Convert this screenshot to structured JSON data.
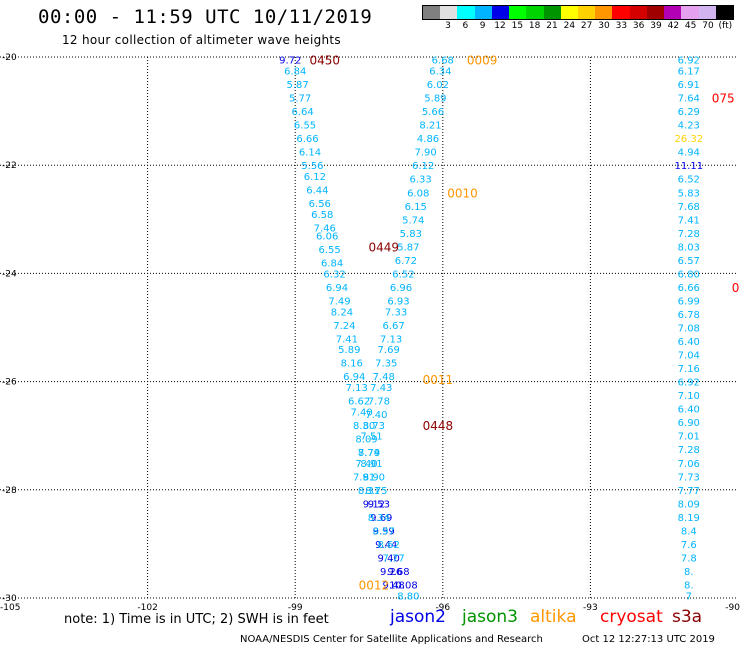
{
  "header": {
    "title": "00:00 - 11:59 UTC 10/11/2019",
    "subtitle": "12 hour collection of altimeter wave heights"
  },
  "colorbar": {
    "unit": "(ft)",
    "segments": [
      {
        "label": "",
        "color": "#808080"
      },
      {
        "label": "3",
        "color": "#e0e0e0"
      },
      {
        "label": "6",
        "color": "#00ffff"
      },
      {
        "label": "9",
        "color": "#00b4ff"
      },
      {
        "label": "12",
        "color": "#0000e8"
      },
      {
        "label": "15",
        "color": "#00ff00"
      },
      {
        "label": "18",
        "color": "#00d400"
      },
      {
        "label": "21",
        "color": "#009400"
      },
      {
        "label": "24",
        "color": "#ffff00"
      },
      {
        "label": "27",
        "color": "#ffd200"
      },
      {
        "label": "30",
        "color": "#ff9600"
      },
      {
        "label": "33",
        "color": "#ff0000"
      },
      {
        "label": "36",
        "color": "#d40000"
      },
      {
        "label": "39",
        "color": "#a00000"
      },
      {
        "label": "42",
        "color": "#b400b4"
      },
      {
        "label": "45",
        "color": "#e6a0f0"
      },
      {
        "label": "70",
        "color": "#d2b4f0"
      },
      {
        "label": "",
        "color": "#000000"
      }
    ]
  },
  "map": {
    "lon_range": [
      -105,
      -90
    ],
    "lat_range": [
      -30,
      -20
    ],
    "lon_ticks": [
      -105,
      -102,
      -99,
      -96,
      -93,
      -90
    ],
    "lat_ticks": [
      -30,
      -28,
      -26,
      -24,
      -22,
      -20
    ],
    "grid": "dotted",
    "passes": [
      {
        "color": "#00b4ff",
        "points": [
          {
            "lon": -99.1,
            "lat": -20.05,
            "v": "9.72",
            "c": "#0000e8"
          },
          {
            "lon": -99.0,
            "lat": -20.25,
            "v": "6.84"
          },
          {
            "lon": -98.95,
            "lat": -20.5,
            "v": "5.87"
          },
          {
            "lon": -98.9,
            "lat": -20.75,
            "v": "5.77"
          },
          {
            "lon": -98.85,
            "lat": -21.0,
            "v": "6.64"
          },
          {
            "lon": -98.8,
            "lat": -21.25,
            "v": "6.55"
          },
          {
            "lon": -98.75,
            "lat": -21.5,
            "v": "6.66"
          },
          {
            "lon": -98.7,
            "lat": -21.75,
            "v": "6.14"
          },
          {
            "lon": -98.65,
            "lat": -22.0,
            "v": "5.56"
          },
          {
            "lon": -98.6,
            "lat": -22.2,
            "v": "6.12"
          },
          {
            "lon": -98.55,
            "lat": -22.45,
            "v": "6.44"
          },
          {
            "lon": -98.5,
            "lat": -22.7,
            "v": "6.56"
          },
          {
            "lon": -98.45,
            "lat": -22.9,
            "v": "6.58"
          },
          {
            "lon": -98.4,
            "lat": -23.15,
            "v": "7.46"
          },
          {
            "lon": -98.35,
            "lat": -23.3,
            "v": "6.06"
          },
          {
            "lon": -98.3,
            "lat": -23.55,
            "v": "6.55"
          },
          {
            "lon": -98.25,
            "lat": -23.8,
            "v": "6.84"
          },
          {
            "lon": -98.2,
            "lat": -24.0,
            "v": "6.32"
          },
          {
            "lon": -98.15,
            "lat": -24.25,
            "v": "6.94"
          },
          {
            "lon": -98.1,
            "lat": -24.5,
            "v": "7.49"
          },
          {
            "lon": -98.05,
            "lat": -24.7,
            "v": "8.24"
          },
          {
            "lon": -98.0,
            "lat": -24.95,
            "v": "7.24"
          },
          {
            "lon": -97.95,
            "lat": -25.2,
            "v": "7.41"
          },
          {
            "lon": -97.9,
            "lat": -25.4,
            "v": "5.89"
          },
          {
            "lon": -97.85,
            "lat": -25.65,
            "v": "8.16"
          },
          {
            "lon": -97.8,
            "lat": -25.9,
            "v": "6.94"
          },
          {
            "lon": -97.75,
            "lat": -26.1,
            "v": "7.13"
          },
          {
            "lon": -97.7,
            "lat": -26.35,
            "v": "6.62"
          },
          {
            "lon": -97.65,
            "lat": -26.55,
            "v": "7.40"
          },
          {
            "lon": -97.6,
            "lat": -26.8,
            "v": "8.30"
          },
          {
            "lon": -97.55,
            "lat": -27.05,
            "v": "8.09"
          },
          {
            "lon": -97.5,
            "lat": -27.3,
            "v": "7.79"
          },
          {
            "lon": -97.45,
            "lat": -27.5,
            "v": "8.91"
          },
          {
            "lon": -97.4,
            "lat": -27.75,
            "v": "8.90"
          },
          {
            "lon": -97.35,
            "lat": -28.0,
            "v": "8.75"
          },
          {
            "lon": -97.3,
            "lat": -28.25,
            "v": "9.53",
            "c": "#0000e8"
          },
          {
            "lon": -97.25,
            "lat": -28.5,
            "v": "9.69",
            "c": "#0000e8"
          },
          {
            "lon": -97.2,
            "lat": -28.75,
            "v": "9.59",
            "c": "#0000e8"
          },
          {
            "lon": -97.15,
            "lat": -29.0,
            "v": "9.44",
            "c": "#0000e8"
          },
          {
            "lon": -97.1,
            "lat": -29.25,
            "v": "9.40",
            "c": "#0000e8"
          },
          {
            "lon": -97.05,
            "lat": -29.5,
            "v": "9.26",
            "c": "#0000e8"
          },
          {
            "lon": -97.0,
            "lat": -29.75,
            "v": "9.48",
            "c": "#0000e8"
          }
        ]
      },
      {
        "color": "#00b4ff",
        "points": [
          {
            "lon": -96.0,
            "lat": -20.05,
            "v": "6.68"
          },
          {
            "lon": -96.05,
            "lat": -20.25,
            "v": "6.34"
          },
          {
            "lon": -96.1,
            "lat": -20.5,
            "v": "6.02"
          },
          {
            "lon": -96.15,
            "lat": -20.75,
            "v": "5.89"
          },
          {
            "lon": -96.2,
            "lat": -21.0,
            "v": "5.66"
          },
          {
            "lon": -96.25,
            "lat": -21.25,
            "v": "8.21"
          },
          {
            "lon": -96.3,
            "lat": -21.5,
            "v": "4.86"
          },
          {
            "lon": -96.35,
            "lat": -21.75,
            "v": "7.90"
          },
          {
            "lon": -96.4,
            "lat": -22.0,
            "v": "6.12"
          },
          {
            "lon": -96.45,
            "lat": -22.25,
            "v": "6.33"
          },
          {
            "lon": -96.5,
            "lat": -22.5,
            "v": "6.08"
          },
          {
            "lon": -96.55,
            "lat": -22.75,
            "v": "6.15"
          },
          {
            "lon": -96.6,
            "lat": -23.0,
            "v": "5.74"
          },
          {
            "lon": -96.65,
            "lat": -23.25,
            "v": "5.83"
          },
          {
            "lon": -96.7,
            "lat": -23.5,
            "v": "5.87"
          },
          {
            "lon": -96.75,
            "lat": -23.75,
            "v": "6.72"
          },
          {
            "lon": -96.8,
            "lat": -24.0,
            "v": "6.52"
          },
          {
            "lon": -96.85,
            "lat": -24.25,
            "v": "6.96"
          },
          {
            "lon": -96.9,
            "lat": -24.5,
            "v": "6.93"
          },
          {
            "lon": -96.95,
            "lat": -24.7,
            "v": "7.33"
          },
          {
            "lon": -97.0,
            "lat": -24.95,
            "v": "6.67"
          },
          {
            "lon": -97.05,
            "lat": -25.2,
            "v": "7.13"
          },
          {
            "lon": -97.1,
            "lat": -25.4,
            "v": "7.69"
          },
          {
            "lon": -97.15,
            "lat": -25.65,
            "v": "7.35"
          },
          {
            "lon": -97.2,
            "lat": -25.9,
            "v": "7.48"
          },
          {
            "lon": -97.25,
            "lat": -26.1,
            "v": "7.43"
          },
          {
            "lon": -97.3,
            "lat": -26.35,
            "v": "7.78"
          },
          {
            "lon": -97.35,
            "lat": -26.6,
            "v": "7.40"
          },
          {
            "lon": -97.4,
            "lat": -26.8,
            "v": "8.73"
          },
          {
            "lon": -97.45,
            "lat": -27.0,
            "v": "7.51"
          },
          {
            "lon": -97.5,
            "lat": -27.3,
            "v": "8.74"
          },
          {
            "lon": -97.55,
            "lat": -27.5,
            "v": "7.40"
          },
          {
            "lon": -97.6,
            "lat": -27.75,
            "v": "7.91"
          },
          {
            "lon": -97.5,
            "lat": -28.0,
            "v": "8.31"
          },
          {
            "lon": -97.4,
            "lat": -28.25,
            "v": "9.12",
            "c": "#0000e8"
          },
          {
            "lon": -97.3,
            "lat": -28.5,
            "v": "8.34"
          },
          {
            "lon": -97.2,
            "lat": -28.75,
            "v": "8.97"
          },
          {
            "lon": -97.1,
            "lat": -29.0,
            "v": "8.62"
          },
          {
            "lon": -97.0,
            "lat": -29.25,
            "v": "7.77"
          },
          {
            "lon": -96.9,
            "lat": -29.5,
            "v": "9.68",
            "c": "#0000e8"
          },
          {
            "lon": -96.8,
            "lat": -29.75,
            "v": "10.08",
            "c": "#0000e8"
          },
          {
            "lon": -96.7,
            "lat": -29.95,
            "v": "8.80"
          }
        ]
      },
      {
        "color": "#00b4ff",
        "points": [
          {
            "lon": -91.0,
            "lat": -20.05,
            "v": "6.92"
          },
          {
            "lon": -91.0,
            "lat": -20.25,
            "v": "6.17"
          },
          {
            "lon": -91.0,
            "lat": -20.5,
            "v": "6.91"
          },
          {
            "lon": -91.0,
            "lat": -20.75,
            "v": "7.64"
          },
          {
            "lon": -91.0,
            "lat": -21.0,
            "v": "6.29"
          },
          {
            "lon": -91.0,
            "lat": -21.25,
            "v": "4.23"
          },
          {
            "lon": -91.0,
            "lat": -21.5,
            "v": "26.32",
            "c": "#ffd200"
          },
          {
            "lon": -91.0,
            "lat": -21.75,
            "v": "4.94"
          },
          {
            "lon": -91.0,
            "lat": -22.0,
            "v": "11.11",
            "c": "#0000e8"
          },
          {
            "lon": -91.0,
            "lat": -22.25,
            "v": "6.52"
          },
          {
            "lon": -91.0,
            "lat": -22.5,
            "v": "5.83"
          },
          {
            "lon": -91.0,
            "lat": -22.75,
            "v": "7.68"
          },
          {
            "lon": -91.0,
            "lat": -23.0,
            "v": "7.41"
          },
          {
            "lon": -91.0,
            "lat": -23.25,
            "v": "7.28"
          },
          {
            "lon": -91.0,
            "lat": -23.5,
            "v": "8.03"
          },
          {
            "lon": -91.0,
            "lat": -23.75,
            "v": "6.57"
          },
          {
            "lon": -91.0,
            "lat": -24.0,
            "v": "6.80"
          },
          {
            "lon": -91.0,
            "lat": -24.25,
            "v": "6.66"
          },
          {
            "lon": -91.0,
            "lat": -24.5,
            "v": "6.99"
          },
          {
            "lon": -91.0,
            "lat": -24.75,
            "v": "6.78"
          },
          {
            "lon": -91.0,
            "lat": -25.0,
            "v": "7.08"
          },
          {
            "lon": -91.0,
            "lat": -25.25,
            "v": "6.40"
          },
          {
            "lon": -91.0,
            "lat": -25.5,
            "v": "7.04"
          },
          {
            "lon": -91.0,
            "lat": -25.75,
            "v": "7.16"
          },
          {
            "lon": -91.0,
            "lat": -26.0,
            "v": "6.92"
          },
          {
            "lon": -91.0,
            "lat": -26.25,
            "v": "7.10"
          },
          {
            "lon": -91.0,
            "lat": -26.5,
            "v": "6.40"
          },
          {
            "lon": -91.0,
            "lat": -26.75,
            "v": "6.90"
          },
          {
            "lon": -91.0,
            "lat": -27.0,
            "v": "7.01"
          },
          {
            "lon": -91.0,
            "lat": -27.25,
            "v": "7.28"
          },
          {
            "lon": -91.0,
            "lat": -27.5,
            "v": "7.06"
          },
          {
            "lon": -91.0,
            "lat": -27.75,
            "v": "7.73"
          },
          {
            "lon": -91.0,
            "lat": -28.0,
            "v": "7.77"
          },
          {
            "lon": -91.0,
            "lat": -28.25,
            "v": "8.09"
          },
          {
            "lon": -91.0,
            "lat": -28.5,
            "v": "8.19"
          },
          {
            "lon": -91.0,
            "lat": -28.75,
            "v": "8.4"
          },
          {
            "lon": -91.0,
            "lat": -29.0,
            "v": "7.6"
          },
          {
            "lon": -91.0,
            "lat": -29.25,
            "v": "7.8"
          },
          {
            "lon": -91.0,
            "lat": -29.5,
            "v": "8."
          },
          {
            "lon": -91.0,
            "lat": -29.75,
            "v": "8."
          },
          {
            "lon": -91.0,
            "lat": -29.95,
            "v": "7"
          }
        ]
      }
    ],
    "time_labels": [
      {
        "text": "0450",
        "lon": -98.4,
        "lat": -20.05,
        "color": "#8b0000"
      },
      {
        "text": "0009",
        "lon": -95.2,
        "lat": -20.05,
        "color": "#ff9600"
      },
      {
        "text": "075",
        "lon": -90.3,
        "lat": -20.75,
        "color": "#ff0000"
      },
      {
        "text": "0010",
        "lon": -95.6,
        "lat": -22.5,
        "color": "#ff9600"
      },
      {
        "text": "0449",
        "lon": -97.2,
        "lat": -23.5,
        "color": "#8b0000"
      },
      {
        "text": "0",
        "lon": -90.05,
        "lat": -24.25,
        "color": "#ff0000"
      },
      {
        "text": "0011",
        "lon": -96.1,
        "lat": -25.95,
        "color": "#ff9600"
      },
      {
        "text": "0448",
        "lon": -96.1,
        "lat": -26.8,
        "color": "#8b0000"
      },
      {
        "text": "0012",
        "lon": -97.4,
        "lat": -29.75,
        "color": "#ff9600"
      }
    ]
  },
  "footer": {
    "note": "note: 1) Time is in UTC; 2) SWH is in feet",
    "legend": [
      {
        "label": "jason2",
        "color": "#0000e8"
      },
      {
        "label": "jason3",
        "color": "#009400"
      },
      {
        "label": "altika",
        "color": "#ff9600"
      },
      {
        "label": "cryosat",
        "color": "#ff0000"
      },
      {
        "label": "s3a",
        "color": "#8b0000"
      }
    ],
    "credit": "NOAA/NESDIS Center for Satellite Applications and Research",
    "generated": "Oct 12 12:27:13 UTC 2019"
  }
}
